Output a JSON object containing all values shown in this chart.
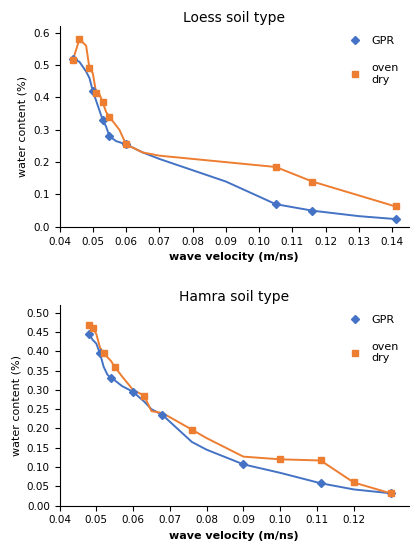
{
  "top_title": "Loess soil type",
  "bottom_title": "Hamra soil type",
  "top": {
    "gpr_x": [
      0.044,
      0.046,
      0.048,
      0.049,
      0.05,
      0.051,
      0.052,
      0.053,
      0.054,
      0.055,
      0.057,
      0.06,
      0.065,
      0.07,
      0.08,
      0.09,
      0.105,
      0.116,
      0.13,
      0.141
    ],
    "gpr_y": [
      0.52,
      0.51,
      0.48,
      0.46,
      0.42,
      0.39,
      0.36,
      0.33,
      0.31,
      0.28,
      0.265,
      0.255,
      0.23,
      0.21,
      0.175,
      0.14,
      0.07,
      0.05,
      0.033,
      0.024
    ],
    "oven_x": [
      0.044,
      0.046,
      0.047,
      0.048,
      0.049,
      0.05,
      0.051,
      0.052,
      0.053,
      0.054,
      0.055,
      0.058,
      0.06,
      0.065,
      0.07,
      0.08,
      0.09,
      0.105,
      0.116,
      0.141
    ],
    "oven_y": [
      0.515,
      0.58,
      0.57,
      0.56,
      0.49,
      0.475,
      0.415,
      0.41,
      0.385,
      0.355,
      0.34,
      0.3,
      0.255,
      0.23,
      0.22,
      0.21,
      0.2,
      0.185,
      0.14,
      0.063
    ],
    "xlim": [
      0.04,
      0.145
    ],
    "ylim": [
      0.0,
      0.62
    ],
    "xticks": [
      0.04,
      0.05,
      0.06,
      0.07,
      0.08,
      0.09,
      0.1,
      0.11,
      0.12,
      0.13,
      0.14
    ],
    "yticks": [
      0.0,
      0.1,
      0.2,
      0.3,
      0.4,
      0.5,
      0.6
    ],
    "xlabel": "wave velocity (m/ns)",
    "ylabel": "water content (%)",
    "gpr_marker_idx": [
      0,
      4,
      7,
      9,
      11,
      16,
      17,
      19
    ],
    "oven_marker_idx": [
      0,
      1,
      4,
      6,
      8,
      10,
      12,
      17,
      18,
      19
    ]
  },
  "bottom": {
    "gpr_x": [
      0.048,
      0.049,
      0.05,
      0.051,
      0.052,
      0.053,
      0.054,
      0.055,
      0.057,
      0.06,
      0.063,
      0.065,
      0.068,
      0.076,
      0.08,
      0.09,
      0.1,
      0.111,
      0.12,
      0.13
    ],
    "gpr_y": [
      0.445,
      0.43,
      0.42,
      0.395,
      0.36,
      0.34,
      0.33,
      0.325,
      0.31,
      0.295,
      0.27,
      0.25,
      0.235,
      0.165,
      0.145,
      0.107,
      0.085,
      0.058,
      0.042,
      0.032
    ],
    "oven_x": [
      0.048,
      0.049,
      0.05,
      0.051,
      0.052,
      0.053,
      0.054,
      0.055,
      0.057,
      0.06,
      0.063,
      0.065,
      0.068,
      0.076,
      0.08,
      0.09,
      0.1,
      0.111,
      0.12,
      0.13
    ],
    "oven_y": [
      0.468,
      0.46,
      0.445,
      0.41,
      0.395,
      0.385,
      0.375,
      0.36,
      0.335,
      0.3,
      0.285,
      0.245,
      0.24,
      0.197,
      0.175,
      0.127,
      0.12,
      0.117,
      0.06,
      0.032
    ],
    "xlim": [
      0.04,
      0.135
    ],
    "ylim": [
      0.0,
      0.52
    ],
    "xticks": [
      0.04,
      0.05,
      0.06,
      0.07,
      0.08,
      0.09,
      0.1,
      0.11,
      0.12
    ],
    "yticks": [
      0.0,
      0.05,
      0.1,
      0.15,
      0.2,
      0.25,
      0.3,
      0.35,
      0.4,
      0.45,
      0.5
    ],
    "xlabel": "wave velocity (m/ns)",
    "ylabel": "water content (%)",
    "gpr_marker_idx": [
      0,
      3,
      6,
      9,
      12,
      15,
      17,
      19
    ],
    "oven_marker_idx": [
      0,
      1,
      4,
      7,
      10,
      13,
      16,
      17,
      18,
      19
    ]
  },
  "gpr_color": "#4472C4",
  "oven_color": "#ED7D31",
  "gpr_marker": "D",
  "oven_marker": "s",
  "marker_size": 4,
  "line_width": 1.4,
  "legend_gpr": "GPR",
  "legend_oven": "oven\ndry",
  "font_size_title": 10,
  "font_size_axis": 8,
  "font_size_tick": 7.5,
  "font_size_legend": 8
}
